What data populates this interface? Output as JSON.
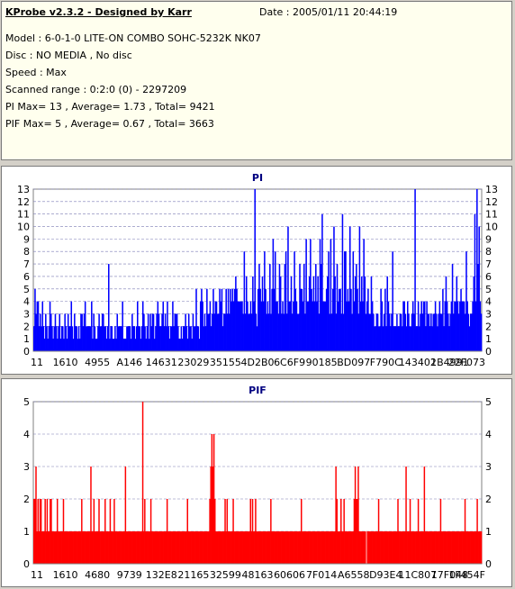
{
  "info": {
    "title": "KProbe v2.3.2 - Designed by Karr",
    "date": "Date : 2005/01/11 20:44:19",
    "model": "Model : 6-0-1-0 LITE-ON COMBO SOHC-5232K NK07",
    "disc": "Disc : NO MEDIA , No disc",
    "speed": "Speed : Max",
    "range": "Scanned range : 0:2:0 (0) - 2297209",
    "pi_stats": "PI Max= 13 , Average= 1.73 , Total= 9421",
    "pif_stats": "PIF Max= 5 , Average= 0.67 , Total= 3663"
  },
  "chart_data": [
    {
      "type": "bar",
      "title": "PI",
      "color": "#0000ff",
      "ylim": [
        0,
        13
      ],
      "yticks": [
        0,
        1,
        2,
        3,
        4,
        5,
        6,
        7,
        8,
        9,
        10,
        11,
        12,
        13
      ],
      "grid": true,
      "xlabels": [
        "11",
        "1610",
        "4955",
        "A146",
        "14631",
        "23029",
        "35155",
        "4D2B0",
        "6C6F9",
        "90185",
        "BD097",
        "F790C",
        "143402",
        "1B4991",
        "22F073"
      ],
      "values": [
        2,
        5,
        3,
        4,
        4,
        2,
        3,
        2,
        4,
        2,
        1,
        3,
        2,
        1,
        2,
        4,
        3,
        2,
        1,
        2,
        3,
        2,
        1,
        2,
        3,
        1,
        2,
        2,
        1,
        3,
        2,
        1,
        3,
        2,
        2,
        4,
        2,
        1,
        3,
        2,
        2,
        1,
        2,
        1,
        3,
        3,
        2,
        3,
        4,
        2,
        2,
        2,
        2,
        2,
        4,
        1,
        3,
        2,
        1,
        1,
        2,
        3,
        2,
        2,
        3,
        3,
        2,
        2,
        1,
        2,
        7,
        1,
        2,
        2,
        1,
        1,
        2,
        1,
        3,
        2,
        2,
        2,
        2,
        4,
        1,
        1,
        1,
        2,
        2,
        2,
        2,
        1,
        3,
        2,
        2,
        1,
        2,
        4,
        2,
        2,
        1,
        2,
        4,
        3,
        2,
        1,
        2,
        3,
        1,
        3,
        2,
        3,
        3,
        1,
        2,
        3,
        4,
        3,
        2,
        2,
        3,
        4,
        2,
        3,
        2,
        4,
        2,
        1,
        2,
        2,
        4,
        2,
        3,
        3,
        3,
        2,
        1,
        1,
        2,
        1,
        2,
        2,
        3,
        2,
        1,
        3,
        2,
        2,
        1,
        3,
        2,
        2,
        5,
        2,
        2,
        1,
        4,
        5,
        4,
        2,
        3,
        2,
        5,
        3,
        3,
        4,
        2,
        3,
        5,
        3,
        4,
        4,
        3,
        3,
        5,
        4,
        5,
        2,
        3,
        3,
        5,
        3,
        5,
        3,
        5,
        4,
        5,
        4,
        5,
        6,
        5,
        4,
        4,
        4,
        4,
        4,
        3,
        8,
        3,
        6,
        4,
        3,
        3,
        4,
        3,
        6,
        4,
        13,
        3,
        2,
        5,
        7,
        5,
        4,
        6,
        4,
        8,
        5,
        3,
        4,
        3,
        7,
        3,
        5,
        9,
        5,
        8,
        4,
        4,
        3,
        7,
        6,
        3,
        4,
        3,
        7,
        8,
        3,
        10,
        4,
        4,
        6,
        3,
        4,
        8,
        5,
        4,
        3,
        3,
        7,
        5,
        5,
        4,
        7,
        3,
        9,
        4,
        4,
        6,
        9,
        5,
        4,
        6,
        4,
        7,
        4,
        6,
        3,
        9,
        7,
        11,
        4,
        4,
        4,
        5,
        6,
        8,
        3,
        9,
        3,
        5,
        10,
        6,
        3,
        7,
        4,
        5,
        5,
        3,
        11,
        3,
        8,
        8,
        4,
        5,
        4,
        10,
        5,
        3,
        8,
        4,
        6,
        7,
        5,
        3,
        10,
        4,
        6,
        4,
        9,
        6,
        3,
        4,
        5,
        3,
        3,
        6,
        4,
        3,
        2,
        2,
        3,
        3,
        2,
        2,
        5,
        4,
        2,
        3,
        5,
        2,
        6,
        4,
        3,
        2,
        3,
        8,
        2,
        2,
        2,
        3,
        2,
        2,
        3,
        3,
        2,
        4,
        4,
        3,
        2,
        4,
        3,
        2,
        2,
        3,
        4,
        3,
        13,
        2,
        2,
        4,
        2,
        3,
        4,
        3,
        4,
        4,
        2,
        4,
        3,
        3,
        2,
        3,
        2,
        3,
        3,
        4,
        3,
        2,
        3,
        4,
        3,
        3,
        5,
        2,
        4,
        6,
        4,
        3,
        2,
        3,
        4,
        7,
        3,
        4,
        4,
        6,
        4,
        3,
        4,
        5,
        4,
        4,
        4,
        3,
        8,
        4,
        3,
        2,
        3,
        3,
        4,
        6,
        11,
        4,
        13,
        7,
        10,
        4,
        3
      ]
    },
    {
      "type": "bar",
      "title": "PIF",
      "color": "#ff0000",
      "ylim": [
        0,
        5
      ],
      "yticks": [
        0,
        1,
        2,
        3,
        4,
        5
      ],
      "grid": true,
      "xlabels": [
        "11",
        "1610",
        "4680",
        "9739",
        "132E8",
        "21165",
        "32599",
        "48163",
        "60606",
        "7F014",
        "A6558",
        "D93E4",
        "11C807",
        "17F048",
        "1F454F"
      ],
      "values": [
        2,
        2,
        3,
        1,
        2,
        1,
        2,
        2,
        1,
        1,
        1,
        2,
        1,
        2,
        1,
        1,
        2,
        2,
        1,
        1,
        1,
        1,
        1,
        2,
        1,
        1,
        1,
        1,
        1,
        2,
        1,
        1,
        1,
        1,
        1,
        1,
        1,
        1,
        1,
        1,
        1,
        1,
        1,
        1,
        1,
        1,
        1,
        2,
        1,
        1,
        1,
        1,
        1,
        1,
        1,
        1,
        3,
        1,
        1,
        2,
        1,
        1,
        1,
        1,
        2,
        1,
        1,
        1,
        1,
        1,
        2,
        1,
        1,
        1,
        1,
        2,
        1,
        1,
        1,
        2,
        1,
        1,
        1,
        1,
        1,
        1,
        1,
        1,
        1,
        1,
        3,
        1,
        1,
        1,
        1,
        1,
        1,
        1,
        1,
        1,
        1,
        1,
        1,
        1,
        1,
        1,
        1,
        5,
        1,
        2,
        1,
        1,
        1,
        1,
        1,
        2,
        1,
        1,
        1,
        1,
        1,
        1,
        1,
        1,
        1,
        1,
        1,
        1,
        1,
        1,
        1,
        2,
        1,
        1,
        1,
        1,
        1,
        1,
        1,
        1,
        1,
        1,
        1,
        1,
        1,
        1,
        1,
        1,
        1,
        1,
        1,
        2,
        1,
        1,
        1,
        1,
        1,
        1,
        1,
        1,
        1,
        1,
        1,
        1,
        1,
        1,
        1,
        1,
        1,
        1,
        1,
        1,
        1,
        2,
        3,
        4,
        3,
        4,
        2,
        1,
        1,
        1,
        1,
        1,
        1,
        1,
        1,
        1,
        2,
        1,
        2,
        1,
        1,
        1,
        1,
        1,
        2,
        1,
        1,
        1,
        1,
        1,
        1,
        1,
        1,
        1,
        1,
        1,
        1,
        1,
        1,
        1,
        1,
        2,
        1,
        2,
        1,
        1,
        2,
        1,
        1,
        1,
        1,
        1,
        1,
        1,
        1,
        1,
        1,
        1,
        1,
        1,
        1,
        2,
        1,
        1,
        1,
        1,
        1,
        1,
        1,
        1,
        1,
        1,
        1,
        1,
        1,
        1,
        1,
        1,
        1,
        1,
        1,
        1,
        1,
        1,
        1,
        1,
        1,
        1,
        1,
        1,
        1,
        2,
        1,
        1,
        1,
        1,
        1,
        1,
        1,
        1,
        1,
        1,
        1,
        1,
        1,
        1,
        1,
        1,
        1,
        1,
        1,
        1,
        1,
        1,
        1,
        1,
        1,
        1,
        1,
        1,
        1,
        1,
        1,
        1,
        1,
        3,
        2,
        1,
        1,
        1,
        2,
        1,
        1,
        2,
        1,
        1,
        1,
        1,
        1,
        1,
        1,
        1,
        1,
        2,
        3,
        2,
        2,
        3,
        1,
        1,
        1,
        1,
        1,
        1,
        1,
        0,
        1,
        1,
        1,
        1,
        1,
        1,
        1,
        1,
        1,
        1,
        1,
        2,
        1,
        1,
        1,
        1,
        1,
        1,
        1,
        1,
        1,
        1,
        1,
        1,
        1,
        1,
        1,
        1,
        1,
        1,
        2,
        1,
        1,
        1,
        1,
        1,
        1,
        1,
        3,
        1,
        1,
        1,
        2,
        1,
        1,
        1,
        1,
        1,
        1,
        1,
        2,
        1,
        1,
        1,
        1,
        1,
        3,
        1,
        1,
        1,
        1,
        1,
        1,
        1,
        1,
        1,
        1,
        1,
        1,
        1,
        1,
        1,
        2,
        1,
        1,
        1,
        1,
        1,
        1,
        1,
        1,
        1,
        1,
        1,
        1,
        1,
        1,
        1,
        1,
        1,
        1,
        1,
        1,
        1,
        1,
        1,
        2,
        1,
        1,
        1,
        1,
        1,
        1,
        1,
        1,
        1,
        1,
        1,
        2,
        1,
        1,
        1,
        1
      ]
    }
  ]
}
